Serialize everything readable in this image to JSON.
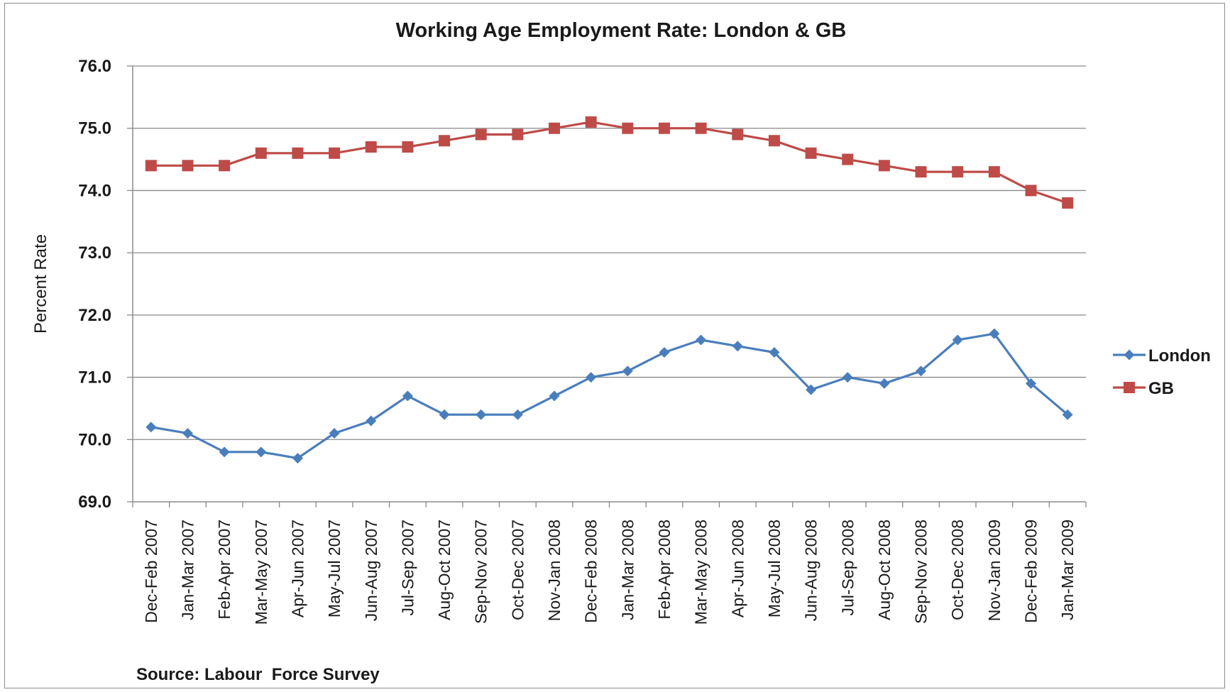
{
  "chart_data": {
    "type": "line",
    "title": "Working Age Employment Rate: London & GB",
    "ylabel": "Percent Rate",
    "xlabel": "",
    "ylim": [
      69.0,
      76.0
    ],
    "yticks": [
      "69.0",
      "70.0",
      "71.0",
      "72.0",
      "73.0",
      "74.0",
      "75.0",
      "76.0"
    ],
    "grid": true,
    "legend_position": "right",
    "categories": [
      "Dec-Feb 2007",
      "Jan-Mar 2007",
      "Feb-Apr 2007",
      "Mar-May 2007",
      "Apr-Jun 2007",
      "May-Jul 2007",
      "Jun-Aug 2007",
      "Jul-Sep 2007",
      "Aug-Oct 2007",
      "Sep-Nov 2007",
      "Oct-Dec 2007",
      "Nov-Jan 2008",
      "Dec-Feb 2008",
      "Jan-Mar 2008",
      "Feb-Apr 2008",
      "Mar-May 2008",
      "Apr-Jun 2008",
      "May-Jul 2008",
      "Jun-Aug 2008",
      "Jul-Sep 2008",
      "Aug-Oct 2008",
      "Sep-Nov 2008",
      "Oct-Dec 2008",
      "Nov-Jan 2009",
      "Dec-Feb 2009",
      "Jan-Mar 2009"
    ],
    "series": [
      {
        "name": "London",
        "color": "#4a7ebb",
        "marker": "diamond",
        "values": [
          70.2,
          70.1,
          69.8,
          69.8,
          69.7,
          70.1,
          70.3,
          70.7,
          70.4,
          70.4,
          70.4,
          70.7,
          71.0,
          71.1,
          71.4,
          71.6,
          71.5,
          71.4,
          70.8,
          71.0,
          70.9,
          71.1,
          71.6,
          71.7,
          70.9,
          70.4
        ]
      },
      {
        "name": "GB",
        "color": "#be4b48",
        "marker": "square",
        "values": [
          74.4,
          74.4,
          74.4,
          74.6,
          74.6,
          74.6,
          74.7,
          74.7,
          74.8,
          74.9,
          74.9,
          75.0,
          75.1,
          75.0,
          75.0,
          75.0,
          74.9,
          74.8,
          74.6,
          74.5,
          74.4,
          74.3,
          74.3,
          74.3,
          74.0,
          73.8
        ]
      }
    ],
    "source_note": "Source: Labour  Force Survey"
  }
}
